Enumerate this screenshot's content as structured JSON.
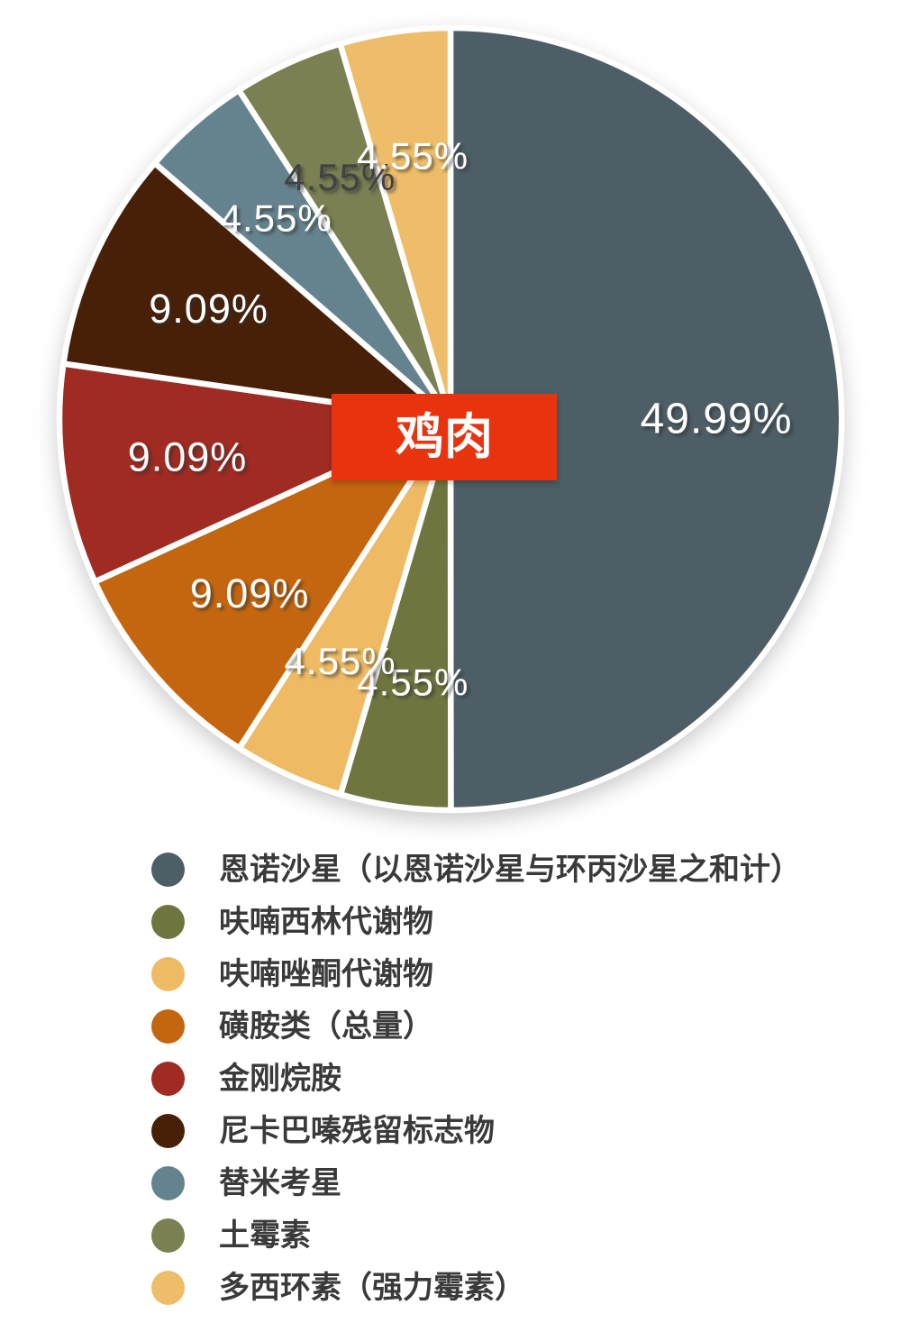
{
  "background_color": "#ffffff",
  "chart_data": {
    "type": "pie",
    "title": "鸡肉",
    "legend_position": "bottom-left",
    "start_angle_deg": 0,
    "direction": "clockwise",
    "center_label": {
      "text": "鸡肉",
      "bg_color": "#e7340f",
      "text_color": "#ffffff"
    },
    "label_text_shadow": "#3a3a3a",
    "slices": [
      {
        "label": "恩诺沙星（以恩诺沙星与环丙沙星之和计）",
        "value": 49.99,
        "display": "49.99%",
        "color": "#4d5e66",
        "label_color": "#ffffff"
      },
      {
        "label": "呋喃西林代谢物",
        "value": 4.55,
        "display": "4.55%",
        "color": "#6f753f",
        "label_color": "#ffffff"
      },
      {
        "label": "呋喃唑酮代谢物",
        "value": 4.55,
        "display": "4.55%",
        "color": "#eeba63",
        "label_color": "#ffffff"
      },
      {
        "label": "磺胺类（总量）",
        "value": 9.09,
        "display": "9.09%",
        "color": "#c4660f",
        "label_color": "#ffffff"
      },
      {
        "label": "金刚烷胺",
        "value": 9.09,
        "display": "9.09%",
        "color": "#a02b22",
        "label_color": "#ffffff"
      },
      {
        "label": "尼卡巴嗪残留标志物",
        "value": 9.09,
        "display": "9.09%",
        "color": "#482007",
        "label_color": "#ffffff"
      },
      {
        "label": "替米考星",
        "value": 4.55,
        "display": "4.55%",
        "color": "#65838e",
        "label_color": "#ffffff"
      },
      {
        "label": "土霉素",
        "value": 4.55,
        "display": "4.55%",
        "color": "#7a8052",
        "label_color": "#3f4245"
      },
      {
        "label": "多西环素（强力霉素）",
        "value": 4.55,
        "display": "4.55%",
        "color": "#eebd69",
        "label_color": "#ffffff"
      }
    ]
  }
}
